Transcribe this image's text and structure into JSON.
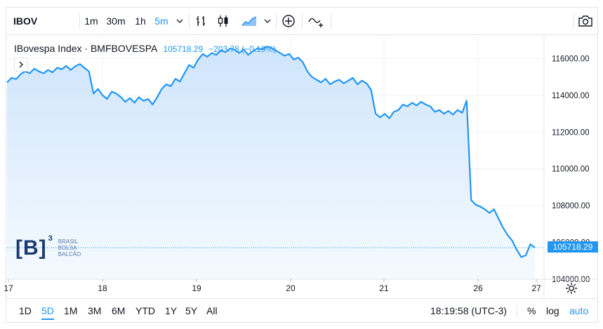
{
  "toolbar": {
    "symbol": "IBOV",
    "intervals": [
      "1m",
      "30m",
      "1h",
      "5m"
    ],
    "active_interval": "5m"
  },
  "legend": {
    "name": "IBovespa Index · BMFBOVESPA",
    "last": "105718.29",
    "change": "−203.78 (−0.19%)"
  },
  "logo": {
    "mark": "[B]",
    "superscript": "3",
    "lines": [
      "BRASIL",
      "BOLSA",
      "BALCÃO"
    ]
  },
  "colors": {
    "line": "#2196f3",
    "fill_top": "#cfe5fb",
    "fill_bottom": "#f5faff",
    "grid": "#eef0f4"
  },
  "price_label": "105718.29",
  "bottom_bar": {
    "ranges": [
      "1D",
      "5D",
      "1M",
      "3M",
      "6M",
      "YTD",
      "1Y",
      "5Y",
      "All"
    ],
    "active_range": "5D",
    "clock": "18:19:58 (UTC-3)",
    "percent": "%",
    "log": "log",
    "auto": "auto"
  },
  "chart_data": {
    "type": "area",
    "title": "IBovespa Index · BMFBOVESPA",
    "xlabel": "",
    "ylabel": "",
    "x_ticks": [
      "17",
      "18",
      "19",
      "20",
      "21",
      "26",
      "27"
    ],
    "y_ticks": [
      "104000.00",
      "106000.00",
      "108000.00",
      "110000.00",
      "112000.00",
      "114000.00",
      "116000.00"
    ],
    "ylim": [
      104000,
      117200
    ],
    "grid": true,
    "series": [
      {
        "values": [
          114700,
          114950,
          114880,
          115150,
          115300,
          115200,
          115450,
          115300,
          115200,
          115380,
          115250,
          115500,
          115420,
          115600,
          115380,
          115580,
          115700,
          115500,
          115300,
          114100,
          114350,
          114000,
          113800,
          114200,
          114100,
          113900,
          113650,
          113850,
          113600,
          113900,
          113700,
          113800,
          113500,
          113900,
          114350,
          114600,
          114500,
          114900,
          114750,
          115200,
          115650,
          115500,
          115950,
          116250,
          116100,
          116300,
          116200,
          116450,
          116350,
          116550,
          116480,
          116300,
          116500,
          116200,
          116400,
          116550,
          116500,
          116650,
          116600,
          116450,
          116300,
          116150,
          116250,
          115950,
          116050,
          115800,
          115300,
          115000,
          114850,
          114700,
          114900,
          114600,
          114750,
          114850,
          114650,
          114800,
          114950,
          114600,
          114800,
          114650,
          114300,
          113000,
          112800,
          113000,
          112750,
          113100,
          113200,
          113500,
          113400,
          113600,
          113450,
          113650,
          113500,
          113400,
          113100,
          113200,
          113000,
          113150,
          112950,
          113200,
          113050,
          113700,
          108300,
          108050,
          107950,
          107800,
          107600,
          107800,
          107300,
          106800,
          106400,
          106100,
          105600,
          105200,
          105300,
          105900,
          105718
        ]
      }
    ]
  }
}
